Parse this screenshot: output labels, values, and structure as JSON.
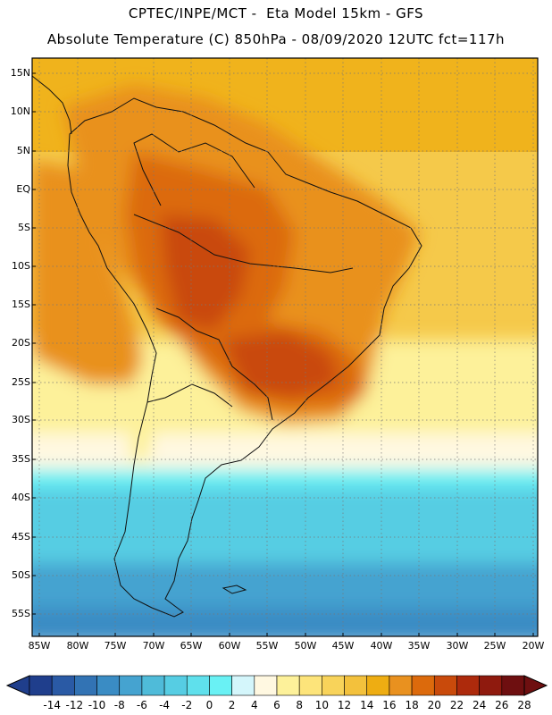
{
  "header": {
    "line1": "CPTEC/INPE/MCT -  Eta Model 15km - GFS",
    "line2": "Absolute Temperature (C) 850hPa - 08/09/2020 12UTC fct=117h"
  },
  "axes": {
    "lat_labels": [
      "15N",
      "10N",
      "5N",
      "EQ",
      "5S",
      "10S",
      "15S",
      "20S",
      "25S",
      "30S",
      "35S",
      "40S",
      "45S",
      "50S",
      "55S"
    ],
    "lon_labels": [
      "85W",
      "80W",
      "75W",
      "70W",
      "65W",
      "60W",
      "55W",
      "50W",
      "45W",
      "40W",
      "35W",
      "30W",
      "25W",
      "20W"
    ]
  },
  "colorbar": {
    "labels": [
      "-14",
      "-12",
      "-10",
      "-8",
      "-6",
      "-4",
      "-2",
      "0",
      "2",
      "4",
      "6",
      "8",
      "10",
      "12",
      "14",
      "16",
      "18",
      "20",
      "22",
      "24",
      "26",
      "28"
    ],
    "colors": [
      "#1f3e8c",
      "#2a5aa5",
      "#3273b4",
      "#3a8cc4",
      "#45a3d0",
      "#4fbbd9",
      "#56cde3",
      "#5fe0ec",
      "#69f1f4",
      "#d4f6fb",
      "#fff8e1",
      "#fdf19a",
      "#fde47a",
      "#f8d35a",
      "#f3c13c",
      "#eead12",
      "#e9911f",
      "#dc6a0c",
      "#c94a0b",
      "#ad2a0c",
      "#8f1a0e",
      "#6e0f10"
    ],
    "under_color": "#1f3e8c",
    "over_color": "#6e0f10"
  },
  "map_colors": {
    "ocean_north": "#f0b31c",
    "ocean_mid": "#f5c94a",
    "warm": "#e9911f",
    "hot": "#dc6a0c",
    "hottest": "#c94a0b",
    "pale": "#fdf19a",
    "cream": "#fff8e1",
    "cyan": "#56cde3",
    "cyan_light": "#69f1f4",
    "blue": "#45a3d0",
    "blue_dark": "#3a8cc4",
    "coast": "#111111"
  }
}
